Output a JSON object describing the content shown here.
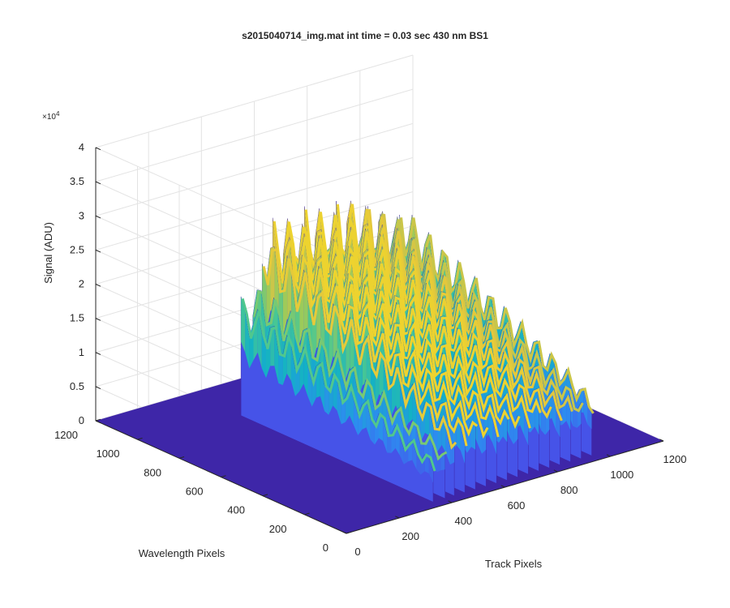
{
  "chart_data": {
    "type": "surface",
    "title": "s2015040714_img.mat int time = 0.03 sec  430 nm BS1",
    "xlabel": "Track Pixels",
    "ylabel": "Wavelength Pixels",
    "zlabel": "Signal (ADU)",
    "z_exponent_label": "×10",
    "z_exponent_power": "4",
    "xlim": [
      0,
      1200
    ],
    "ylim": [
      0,
      1200
    ],
    "zlim": [
      0,
      40000
    ],
    "x_ticks": [
      "0",
      "200",
      "400",
      "600",
      "800",
      "1000",
      "1200"
    ],
    "y_ticks": [
      "0",
      "200",
      "400",
      "600",
      "800",
      "1000",
      "1200"
    ],
    "z_ticks": [
      "0",
      "0.5",
      "1",
      "1.5",
      "2",
      "2.5",
      "3",
      "3.5",
      "4"
    ],
    "grid": true,
    "colormap": [
      "#3e26a8",
      "#4653e8",
      "#2d8cf0",
      "#12b1c6",
      "#47c794",
      "#9cca5a",
      "#e0c441",
      "#f9e01f"
    ],
    "track_peaks": [
      {
        "x": 360,
        "peak": 17600
      },
      {
        "x": 405,
        "peak": 19600
      },
      {
        "x": 440,
        "peak": 26600
      },
      {
        "x": 480,
        "peak": 27600
      },
      {
        "x": 520,
        "peak": 28000
      },
      {
        "x": 560,
        "peak": 28000
      },
      {
        "x": 600,
        "peak": 28000
      },
      {
        "x": 640,
        "peak": 27800
      },
      {
        "x": 680,
        "peak": 27800
      },
      {
        "x": 720,
        "peak": 27800
      },
      {
        "x": 760,
        "peak": 27600
      },
      {
        "x": 800,
        "peak": 27000
      },
      {
        "x": 840,
        "peak": 26300
      },
      {
        "x": 880,
        "peak": 25000
      },
      {
        "x": 920,
        "peak": 24000
      },
      {
        "x": 960,
        "peak": 24400
      }
    ]
  }
}
